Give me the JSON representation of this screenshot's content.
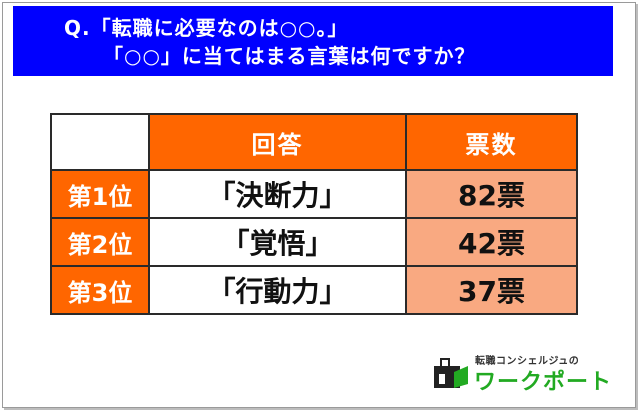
{
  "header": {
    "line1": "Q.「転職に必要なのは○○。」",
    "line2": "「○○」に当てはまる言葉は何ですか？"
  },
  "table": {
    "headers": [
      "回答",
      "票数"
    ],
    "rows": [
      {
        "rank": "第1位",
        "answer": "「決断力」",
        "votes": "82票"
      },
      {
        "rank": "第2位",
        "answer": "「覚悟」",
        "votes": "42票"
      },
      {
        "rank": "第3位",
        "answer": "「行動力」",
        "votes": "37票"
      }
    ]
  },
  "logo": {
    "subtitle": "転職コンシェルジュの",
    "name": "ワークポート",
    "icon": "workport-logo-icon"
  },
  "colors": {
    "header_bg": "#0000ff",
    "accent_orange": "#ff6600",
    "vote_cell_bg": "#f9a981",
    "logo_green": "#22aa22"
  }
}
